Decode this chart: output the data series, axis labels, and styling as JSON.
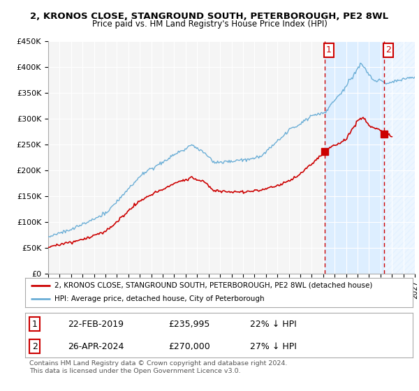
{
  "title": "2, KRONOS CLOSE, STANGROUND SOUTH, PETERBOROUGH, PE2 8WL",
  "subtitle": "Price paid vs. HM Land Registry's House Price Index (HPI)",
  "legend_line1": "2, KRONOS CLOSE, STANGROUND SOUTH, PETERBOROUGH, PE2 8WL (detached house)",
  "legend_line2": "HPI: Average price, detached house, City of Peterborough",
  "sale1_date": "22-FEB-2019",
  "sale1_price": "£235,995",
  "sale1_note": "22% ↓ HPI",
  "sale2_date": "26-APR-2024",
  "sale2_price": "£270,000",
  "sale2_note": "27% ↓ HPI",
  "footnote": "Contains HM Land Registry data © Crown copyright and database right 2024.\nThis data is licensed under the Open Government Licence v3.0.",
  "sale1_x": 2019.14,
  "sale1_y": 235995,
  "sale2_x": 2024.32,
  "sale2_y": 270000,
  "hpi_color": "#6baed6",
  "price_color": "#cc0000",
  "vline_color": "#cc0000",
  "shade_color": "#ddeeff",
  "hatch_color": "#c8d8e8",
  "ylim": [
    0,
    450000
  ],
  "xlim_start": 1995,
  "xlim_end": 2027,
  "background_color": "#ffffff",
  "plot_bg_color": "#f5f5f5"
}
